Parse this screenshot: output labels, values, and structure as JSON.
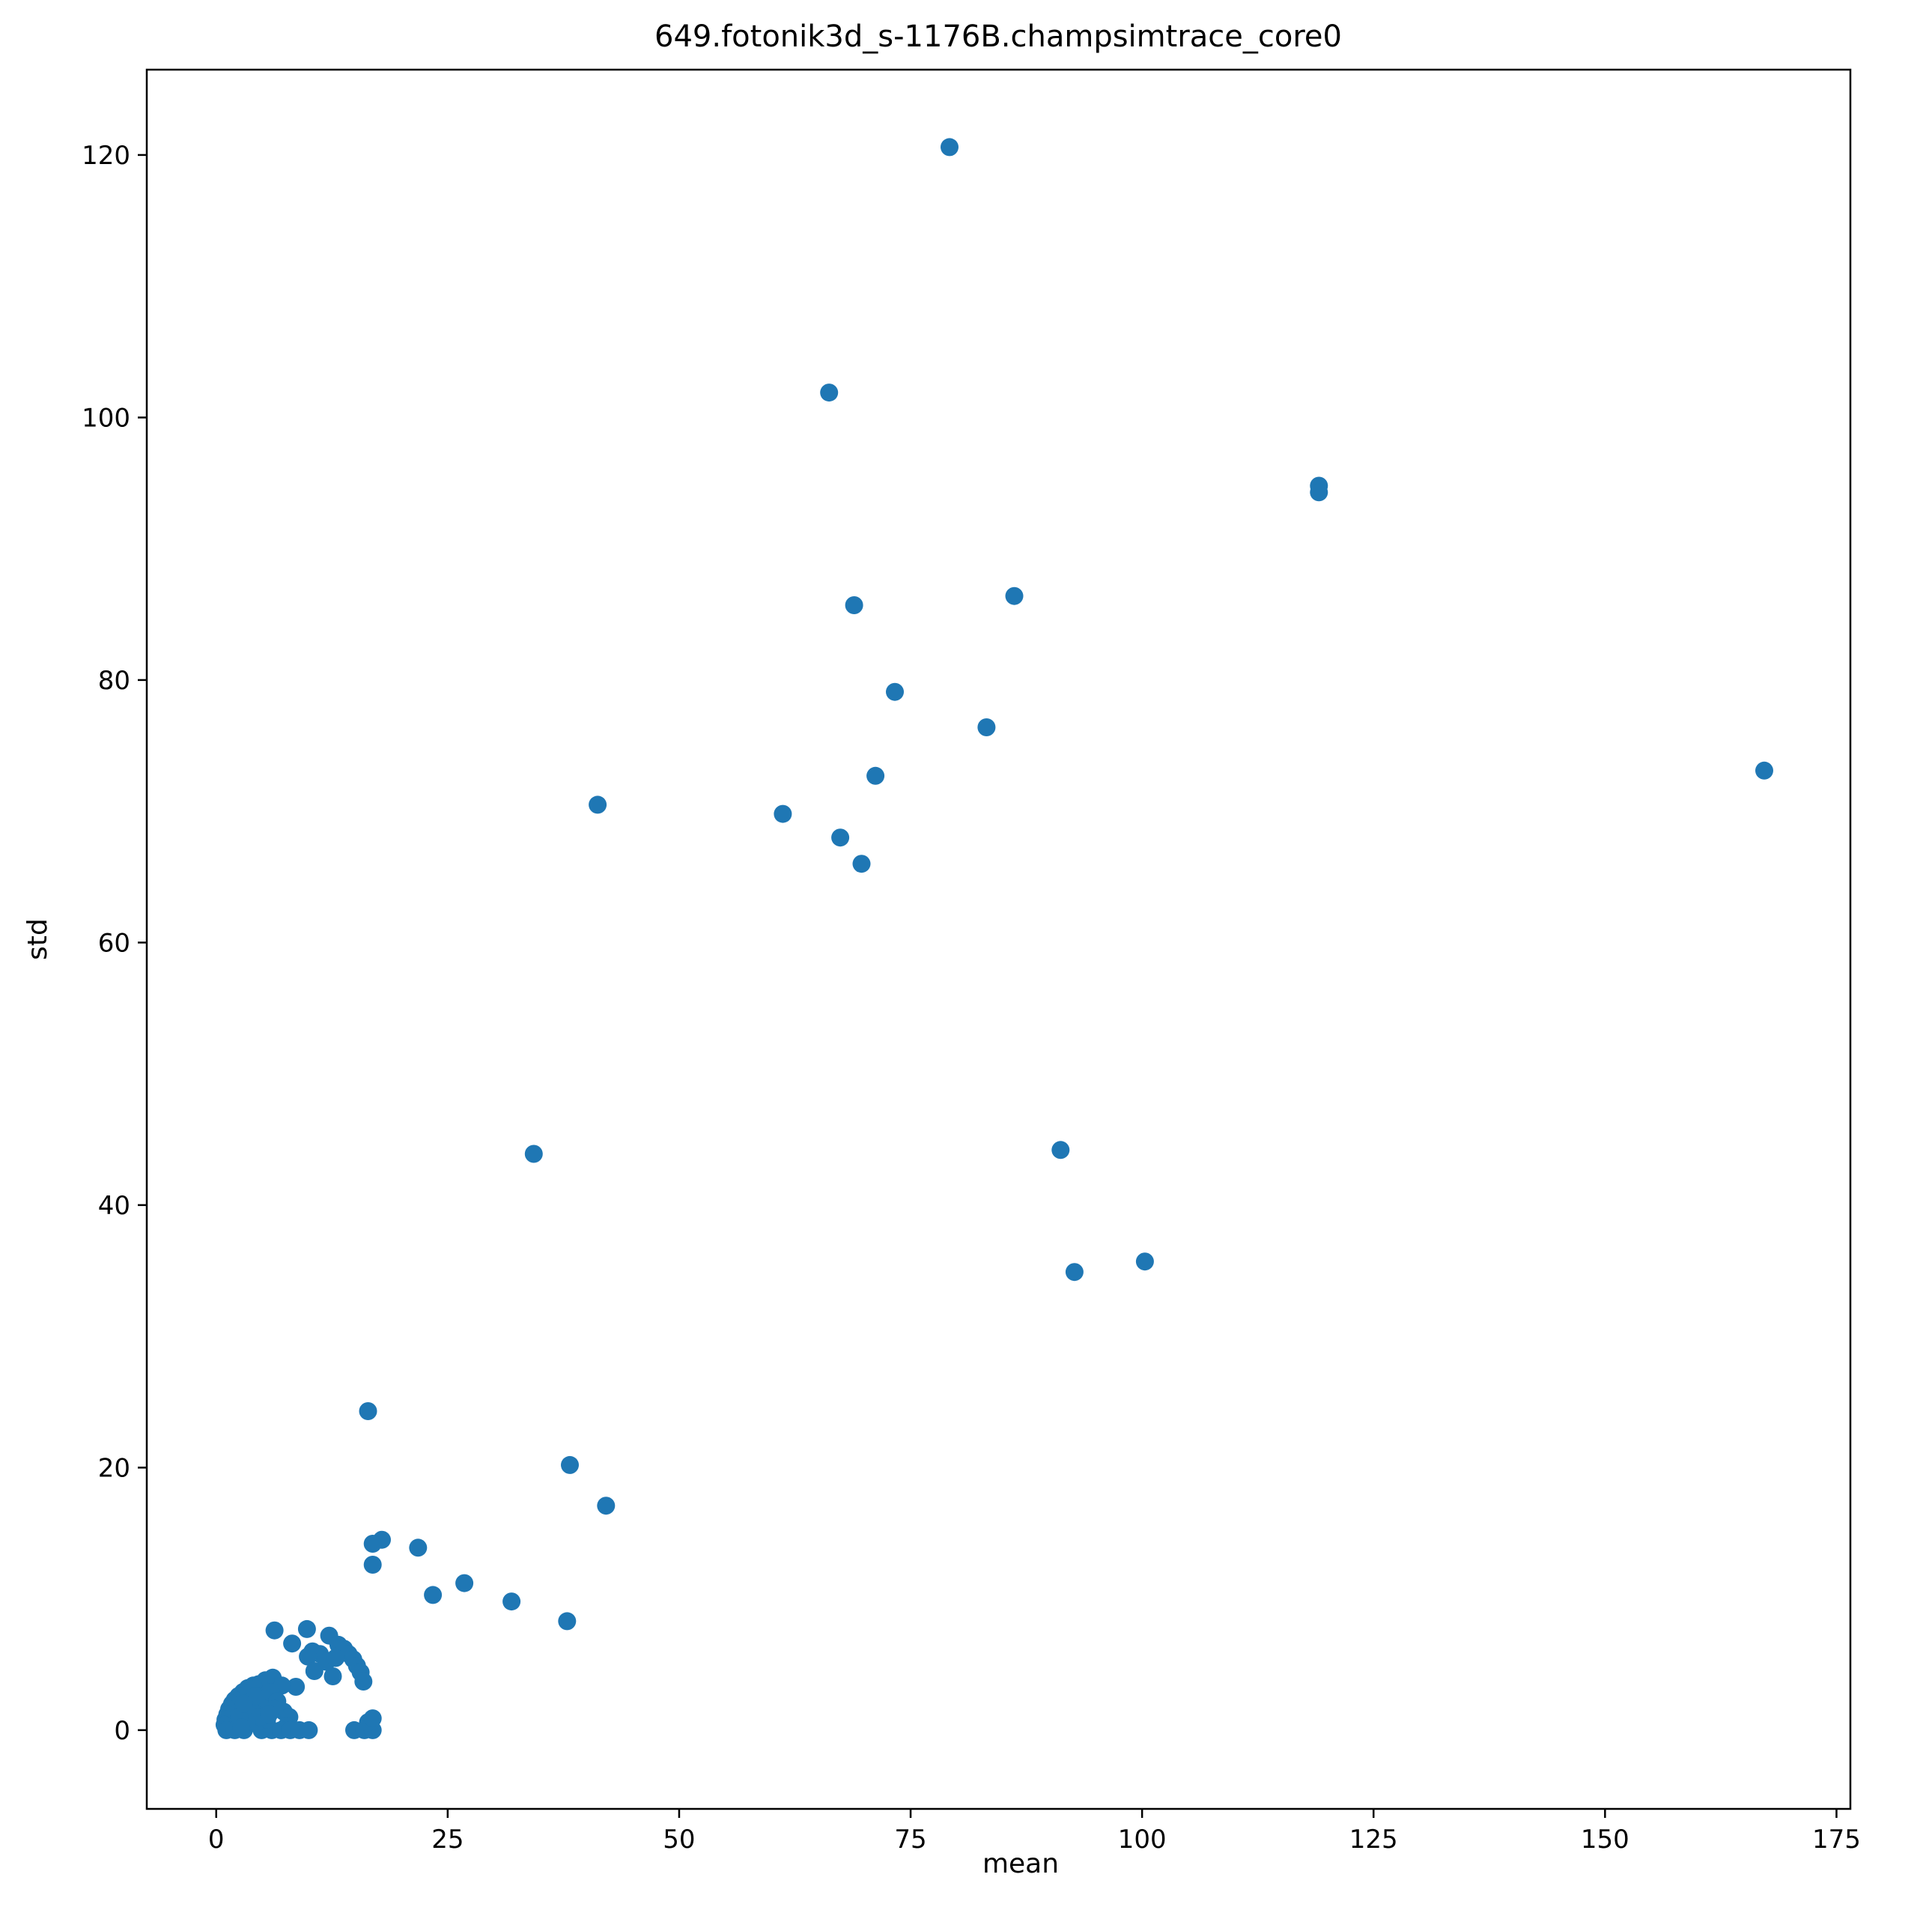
{
  "chart_data": {
    "type": "scatter",
    "title": "649.fotonik3d_s-1176B.champsimtrace_core0",
    "xlabel": "mean",
    "ylabel": "std",
    "xlim": [
      -7.5,
      176.5
    ],
    "ylim": [
      -6.0,
      126.5
    ],
    "xticks": [
      0,
      25,
      50,
      75,
      100,
      125,
      150,
      175
    ],
    "yticks": [
      0,
      20,
      40,
      60,
      80,
      100,
      120
    ],
    "grid": false,
    "legend": "none",
    "colors": {
      "marker": "#1f77b4",
      "axes": "#000000",
      "background": "#ffffff"
    },
    "series": [
      {
        "name": "std vs mean",
        "points": [
          [
            79.2,
            120.6
          ],
          [
            66.2,
            101.9
          ],
          [
            119.1,
            94.8
          ],
          [
            119.1,
            94.3
          ],
          [
            68.9,
            85.7
          ],
          [
            86.2,
            86.4
          ],
          [
            73.3,
            79.1
          ],
          [
            83.2,
            76.4
          ],
          [
            167.2,
            73.1
          ],
          [
            71.2,
            72.7
          ],
          [
            41.2,
            70.5
          ],
          [
            61.2,
            69.8
          ],
          [
            67.4,
            68.0
          ],
          [
            69.7,
            66.0
          ],
          [
            34.3,
            43.9
          ],
          [
            91.2,
            44.2
          ],
          [
            100.3,
            35.7
          ],
          [
            92.7,
            34.9
          ],
          [
            16.4,
            24.3
          ],
          [
            38.2,
            20.2
          ],
          [
            42.1,
            17.1
          ],
          [
            17.9,
            14.5
          ],
          [
            16.9,
            14.2
          ],
          [
            21.8,
            13.9
          ],
          [
            16.9,
            12.6
          ],
          [
            26.8,
            11.2
          ],
          [
            23.4,
            10.3
          ],
          [
            31.9,
            9.8
          ],
          [
            37.9,
            8.3
          ],
          [
            6.3,
            7.6
          ],
          [
            9.8,
            7.7
          ],
          [
            8.2,
            6.6
          ],
          [
            12.2,
            7.2
          ],
          [
            13.2,
            6.5
          ],
          [
            13.8,
            6.2
          ],
          [
            14.3,
            5.8
          ],
          [
            14.8,
            5.4
          ],
          [
            15.2,
            4.9
          ],
          [
            15.6,
            4.4
          ],
          [
            15.9,
            3.7
          ],
          [
            12.6,
            4.1
          ],
          [
            10.4,
            6.0
          ],
          [
            11.2,
            5.8
          ],
          [
            9.9,
            5.6
          ],
          [
            10.6,
            4.5
          ],
          [
            11.9,
            5.2
          ],
          [
            12.9,
            5.5
          ],
          [
            8.6,
            3.3
          ],
          [
            7.1,
            3.4
          ],
          [
            6.1,
            4.0
          ],
          [
            5.3,
            3.8
          ],
          [
            4.6,
            3.5
          ],
          [
            4.0,
            3.4
          ],
          [
            3.4,
            3.2
          ],
          [
            2.9,
            2.9
          ],
          [
            2.4,
            2.6
          ],
          [
            2.0,
            2.3
          ],
          [
            1.7,
            2.0
          ],
          [
            1.4,
            1.6
          ],
          [
            1.2,
            1.2
          ],
          [
            1.0,
            0.8
          ],
          [
            0.9,
            0.4
          ],
          [
            1.1,
            0.0
          ],
          [
            2.0,
            0.0
          ],
          [
            3.0,
            0.0
          ],
          [
            3.6,
            1.3
          ],
          [
            4.4,
            1.8
          ],
          [
            5.2,
            2.4
          ],
          [
            5.9,
            2.9
          ],
          [
            6.6,
            2.2
          ],
          [
            7.3,
            1.4
          ],
          [
            7.9,
            1.0
          ],
          [
            7.6,
            0.3
          ],
          [
            4.9,
            0.0
          ],
          [
            6.0,
            0.0
          ],
          [
            7.0,
            0.0
          ],
          [
            8.0,
            0.0
          ],
          [
            9.0,
            0.0
          ],
          [
            10.0,
            0.0
          ],
          [
            5.5,
            0.8
          ],
          [
            4.7,
            1.0
          ],
          [
            3.3,
            0.6
          ],
          [
            2.5,
            1.0
          ],
          [
            2.7,
            0.2
          ],
          [
            6.3,
            1.6
          ],
          [
            5.7,
            1.2
          ],
          [
            4.2,
            2.6
          ],
          [
            3.0,
            2.0
          ],
          [
            14.9,
            0.0
          ],
          [
            16.0,
            0.0
          ],
          [
            16.9,
            0.0
          ],
          [
            16.4,
            0.6
          ],
          [
            16.9,
            0.9
          ]
        ]
      }
    ]
  }
}
